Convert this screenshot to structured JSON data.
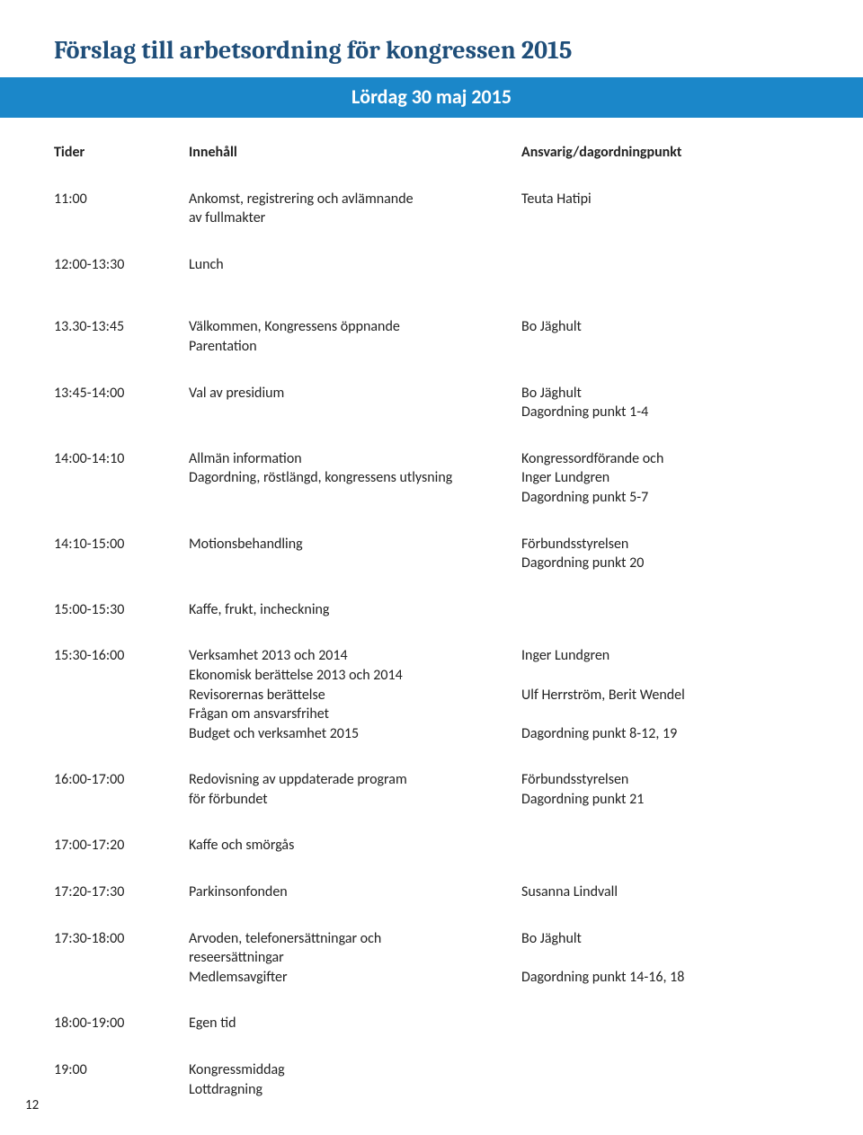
{
  "title": "Förslag till arbetsordning för kongressen 2015",
  "banner": "Lördag 30 maj 2015",
  "headers": {
    "c1": "Tider",
    "c2": "Innehåll",
    "c3": "Ansvarig/dagordningpunkt"
  },
  "rows": {
    "r1": {
      "t": "11:00",
      "c": "Ankomst, registrering och avlämnande\nav fullmakter",
      "a": "Teuta Hatipi"
    },
    "r2": {
      "t": "12:00-13:30",
      "c": "Lunch",
      "a": ""
    },
    "r3": {
      "t": "13.30-13:45",
      "c": "Välkommen, Kongressens öppnande\nParentation",
      "a": "Bo Jäghult"
    },
    "r4": {
      "t": "13:45-14:00",
      "c": "Val av presidium",
      "a": "Bo Jäghult\nDagordning punkt 1-4"
    },
    "r5": {
      "t": "14:00-14:10",
      "c": "Allmän information\nDagordning, röstlängd, kongressens utlysning",
      "a": "Kongressordförande och\nInger Lundgren\nDagordning punkt 5-7"
    },
    "r6": {
      "t": "14:10-15:00",
      "c": "Motionsbehandling",
      "a": "Förbundsstyrelsen\nDagordning punkt 20"
    },
    "r7": {
      "t": "15:00-15:30",
      "c": "Kaffe, frukt, incheckning",
      "a": ""
    },
    "r8": {
      "t": "15:30-16:00",
      "c": "Verksamhet 2013 och 2014\nEkonomisk berättelse 2013 och 2014\nRevisorernas berättelse\nFrågan om ansvarsfrihet\nBudget och verksamhet 2015",
      "a": "Inger Lundgren\n\nUlf Herrström, Berit Wendel\n\nDagordning punkt 8-12, 19"
    },
    "r9": {
      "t": "16:00-17:00",
      "c": "Redovisning av uppdaterade program\nför förbundet",
      "a": "Förbundsstyrelsen\nDagordning punkt 21"
    },
    "r10": {
      "t": "17:00-17:20",
      "c": "Kaffe och smörgås",
      "a": ""
    },
    "r11": {
      "t": "17:20-17:30",
      "c": "Parkinsonfonden",
      "a": "Susanna Lindvall"
    },
    "r12": {
      "t": "17:30-18:00",
      "c": "Arvoden, telefonersättningar och\nreseersättningar\nMedlemsavgifter",
      "a": "Bo Jäghult\n\nDagordning punkt 14-16, 18"
    },
    "r13": {
      "t": "18:00-19:00",
      "c": "Egen tid",
      "a": ""
    },
    "r14": {
      "t": "19:00",
      "c": "Kongressmiddag\nLottdragning",
      "a": ""
    }
  },
  "pageNumber": "12"
}
